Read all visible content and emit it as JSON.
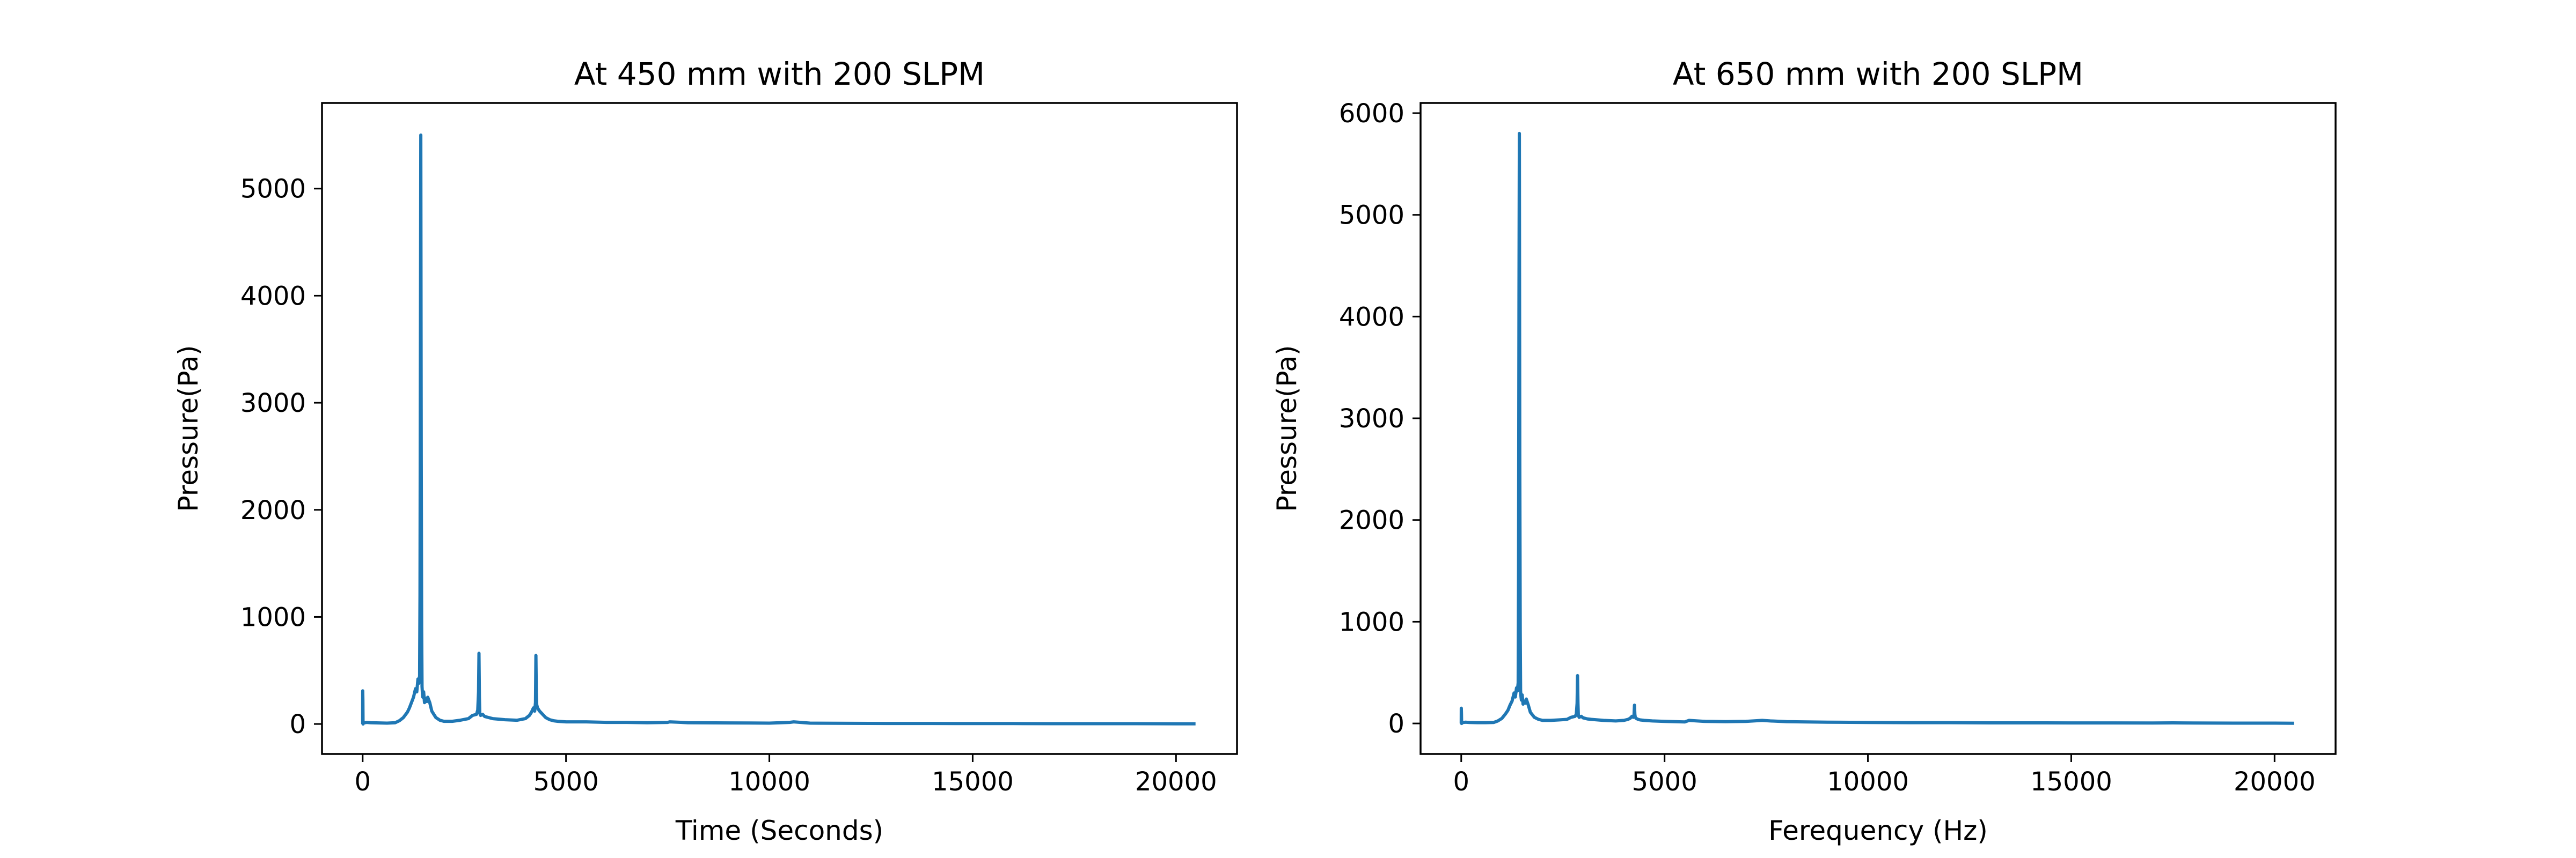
{
  "chart_data": [
    {
      "type": "line",
      "title": "At 450 mm with 200 SLPM",
      "xlabel": "Time (Seconds)",
      "ylabel": "Pressure(Pa)",
      "xlim": [
        -1000,
        21500
      ],
      "ylim": [
        -280,
        5800
      ],
      "xticks": [
        0,
        5000,
        10000,
        15000,
        20000
      ],
      "yticks": [
        0,
        1000,
        2000,
        3000,
        4000,
        5000
      ],
      "grid": false,
      "color": "#1f77b4",
      "series": [
        {
          "x": [
            0,
            2,
            5,
            10,
            15,
            30,
            60,
            100,
            200,
            400,
            600,
            800,
            900,
            1000,
            1100,
            1150,
            1200,
            1250,
            1300,
            1330,
            1360,
            1380,
            1400,
            1410,
            1420,
            1430,
            1440,
            1450,
            1460,
            1470,
            1480,
            1500,
            1520,
            1550,
            1580,
            1600,
            1650,
            1700,
            1800,
            1900,
            2000,
            2200,
            2400,
            2600,
            2700,
            2800,
            2830,
            2850,
            2860,
            2870,
            2880,
            2900,
            2950,
            3000,
            3100,
            3200,
            3500,
            3800,
            4000,
            4100,
            4150,
            4200,
            4230,
            4250,
            4260,
            4270,
            4280,
            4300,
            4350,
            4400,
            4450,
            4500,
            4600,
            4700,
            4800,
            5000,
            5500,
            6000,
            6500,
            7000,
            7500,
            7550,
            8000,
            9000,
            10000,
            10500,
            10600,
            11000,
            12000,
            13000,
            14000,
            15000,
            16000,
            17000,
            18000,
            19000,
            20000,
            20480
          ],
          "y": [
            0,
            310,
            220,
            0,
            5,
            10,
            12,
            15,
            12,
            10,
            8,
            12,
            30,
            60,
            110,
            150,
            200,
            250,
            330,
            300,
            420,
            380,
            450,
            1200,
            3500,
            5500,
            2500,
            900,
            350,
            280,
            250,
            300,
            200,
            240,
            210,
            250,
            200,
            120,
            60,
            35,
            25,
            25,
            35,
            50,
            80,
            90,
            130,
            300,
            660,
            250,
            100,
            80,
            90,
            70,
            60,
            50,
            40,
            35,
            50,
            80,
            110,
            150,
            120,
            200,
            640,
            300,
            180,
            150,
            120,
            100,
            80,
            60,
            40,
            30,
            25,
            20,
            20,
            15,
            15,
            12,
            15,
            20,
            12,
            10,
            8,
            15,
            20,
            8,
            6,
            5,
            5,
            4,
            4,
            3,
            3,
            3,
            2,
            2
          ]
        }
      ]
    },
    {
      "type": "line",
      "title": "At 650 mm with 200 SLPM",
      "xlabel": "Ferequency (Hz)",
      "ylabel": "Pressure(Pa)",
      "xlim": [
        -1000,
        21500
      ],
      "ylim": [
        -300,
        6100
      ],
      "xticks": [
        0,
        5000,
        10000,
        15000,
        20000
      ],
      "yticks": [
        0,
        1000,
        2000,
        3000,
        4000,
        5000,
        6000
      ],
      "grid": false,
      "color": "#1f77b4",
      "series": [
        {
          "x": [
            0,
            2,
            5,
            10,
            15,
            30,
            60,
            100,
            200,
            400,
            600,
            800,
            900,
            1000,
            1100,
            1150,
            1200,
            1250,
            1300,
            1330,
            1360,
            1380,
            1400,
            1410,
            1420,
            1430,
            1440,
            1450,
            1460,
            1470,
            1480,
            1500,
            1520,
            1550,
            1580,
            1600,
            1650,
            1700,
            1800,
            1900,
            2000,
            2200,
            2400,
            2600,
            2700,
            2800,
            2830,
            2850,
            2860,
            2870,
            2880,
            2900,
            2950,
            3000,
            3100,
            3200,
            3500,
            3800,
            4000,
            4100,
            4150,
            4200,
            4230,
            4250,
            4260,
            4270,
            4280,
            4300,
            4350,
            4400,
            4500,
            4700,
            5000,
            5500,
            5600,
            6000,
            6500,
            7000,
            7400,
            7600,
            8000,
            9000,
            10000,
            11000,
            12000,
            13000,
            14000,
            15000,
            16000,
            17000,
            17500,
            18000,
            19000,
            20000,
            20480
          ],
          "y": [
            0,
            150,
            100,
            0,
            5,
            8,
            10,
            12,
            10,
            8,
            8,
            10,
            25,
            50,
            100,
            130,
            180,
            220,
            300,
            260,
            350,
            320,
            400,
            1500,
            4200,
            5800,
            2600,
            900,
            320,
            260,
            230,
            280,
            190,
            220,
            200,
            240,
            180,
            110,
            60,
            40,
            30,
            30,
            35,
            40,
            60,
            70,
            90,
            200,
            470,
            200,
            80,
            60,
            70,
            55,
            45,
            40,
            30,
            25,
            30,
            40,
            50,
            70,
            60,
            80,
            180,
            90,
            60,
            50,
            40,
            35,
            30,
            25,
            20,
            15,
            30,
            20,
            18,
            20,
            30,
            25,
            18,
            12,
            10,
            8,
            8,
            6,
            6,
            5,
            5,
            4,
            6,
            4,
            3,
            3,
            2
          ]
        }
      ]
    }
  ]
}
